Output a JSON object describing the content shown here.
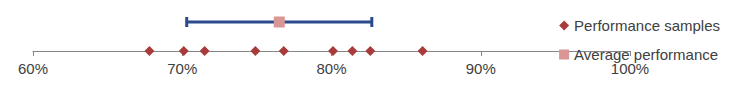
{
  "chart_data": {
    "type": "scatter",
    "xlim": [
      60,
      100
    ],
    "xticks": [
      {
        "value": 60,
        "label": "60%"
      },
      {
        "value": 70,
        "label": "70%"
      },
      {
        "value": 80,
        "label": "80%"
      },
      {
        "value": 90,
        "label": "90%"
      },
      {
        "value": 100,
        "label": "100%"
      }
    ],
    "legend": "right",
    "series": [
      {
        "name": "Performance samples",
        "marker": "diamond",
        "color": "#a83c3c",
        "values": [
          67.8,
          70.1,
          71.5,
          74.9,
          76.8,
          80.1,
          81.4,
          82.6,
          86.1
        ]
      },
      {
        "name": "Average performance",
        "marker": "square",
        "color": "#d99694",
        "values": [
          76.5
        ],
        "error_low": [
          70.3
        ],
        "error_high": [
          82.7
        ]
      }
    ]
  }
}
